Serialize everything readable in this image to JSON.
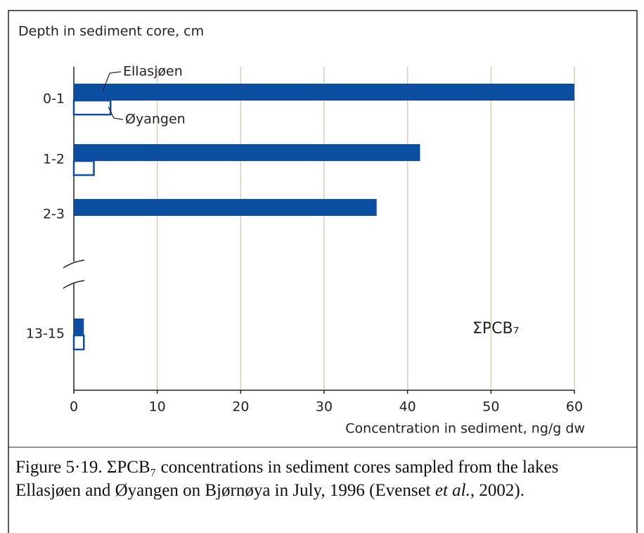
{
  "chart_data": {
    "type": "bar",
    "orientation": "horizontal",
    "y_axis_label": "Depth in sediment core, cm",
    "x_axis_label": "Concentration in sediment, ng/g dw",
    "annotation": "ΣPCB₇",
    "categories": [
      "0-1",
      "1-2",
      "2-3",
      "13-15"
    ],
    "series": [
      {
        "name": "Ellasjøen",
        "color": "#0b4ea2",
        "filled": true,
        "values": [
          60,
          41.5,
          36.3,
          1.2
        ]
      },
      {
        "name": "Øyangen",
        "color": "#0b4ea2",
        "filled": false,
        "values": [
          4.4,
          2.4,
          null,
          1.2
        ]
      }
    ],
    "xlim": [
      0,
      60
    ],
    "xticks": [
      0,
      10,
      20,
      30,
      40,
      50,
      60
    ],
    "grid": true,
    "axis_break": true,
    "caption": [
      "Figure 5·19. ΣPCB₇ concentrations in sediment cores sampled from the lakes Ellasjøen and Øyangen on Bjørnøya in July, 1996 (Even­set ",
      "et al.",
      ", 2002)."
    ]
  }
}
